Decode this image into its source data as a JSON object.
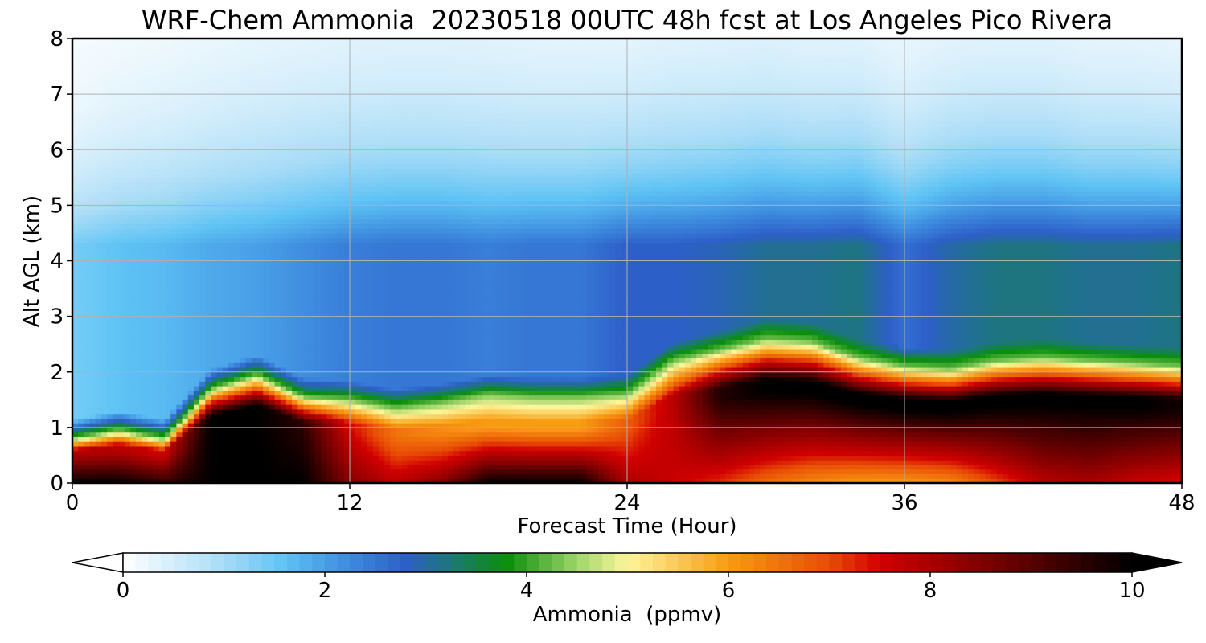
{
  "chart_data": {
    "type": "heatmap",
    "title": "WRF-Chem Ammonia  20230518 00UTC 48h fcst at Los Angeles Pico Rivera",
    "xlabel": "Forecast Time (Hour)",
    "ylabel": "Alt AGL (km)",
    "xlim": [
      0,
      48
    ],
    "ylim": [
      0,
      8
    ],
    "xticks": [
      0,
      12,
      24,
      36,
      48
    ],
    "yticks": [
      0,
      1,
      2,
      3,
      4,
      5,
      6,
      7,
      8
    ],
    "grid": true,
    "colorbar": {
      "label": "Ammonia  (ppmv)",
      "orientation": "horizontal",
      "placement": "bottom",
      "range": [
        0,
        10
      ],
      "extend": "both",
      "ticks": [
        0,
        2,
        4,
        6,
        8,
        10
      ],
      "colors": [
        {
          "v": 0,
          "c": "#ffffff"
        },
        {
          "v": 1.0,
          "c": "#a8dcf7"
        },
        {
          "v": 1.6,
          "c": "#5ec3f5"
        },
        {
          "v": 2.2,
          "c": "#3f8ee0"
        },
        {
          "v": 2.8,
          "c": "#2d5fc9"
        },
        {
          "v": 3.3,
          "c": "#1a7a6e"
        },
        {
          "v": 3.8,
          "c": "#0a8f0a"
        },
        {
          "v": 4.5,
          "c": "#9ed56a"
        },
        {
          "v": 5.0,
          "c": "#fdf69a"
        },
        {
          "v": 6.0,
          "c": "#f99b12"
        },
        {
          "v": 7.0,
          "c": "#e84c05"
        },
        {
          "v": 7.5,
          "c": "#d10000"
        },
        {
          "v": 8.6,
          "c": "#7a0000"
        },
        {
          "v": 10.0,
          "c": "#000000"
        }
      ]
    },
    "hours": [
      0,
      2,
      4,
      6,
      8,
      10,
      12,
      14,
      16,
      18,
      20,
      22,
      24,
      26,
      28,
      30,
      32,
      34,
      36,
      38,
      40,
      42,
      44,
      46,
      48
    ],
    "altitudes_km": [
      0,
      0.2,
      0.4,
      0.6,
      0.8,
      1.0,
      1.2,
      1.4,
      1.6,
      1.8,
      2.0,
      2.2,
      2.4,
      2.6,
      2.8,
      3.0,
      3.2,
      3.4,
      3.6,
      3.8,
      4.0,
      4.2,
      4.4,
      4.6,
      4.8,
      5.0,
      5.2,
      5.4,
      5.6,
      5.8,
      6.0,
      6.2,
      6.4,
      6.6,
      6.8,
      7.0,
      7.2,
      7.4,
      7.6,
      7.8,
      8.0
    ],
    "profile": {
      "hours": [
        0,
        2,
        4,
        6,
        8,
        10,
        12,
        14,
        16,
        18,
        20,
        22,
        24,
        26,
        28,
        30,
        32,
        34,
        36,
        38,
        40,
        42,
        44,
        46,
        48
      ],
      "boundary_layer_top_km": [
        0.8,
        0.95,
        0.8,
        1.7,
        1.95,
        1.55,
        1.5,
        1.35,
        1.45,
        1.6,
        1.55,
        1.55,
        1.6,
        2.2,
        2.4,
        2.6,
        2.55,
        2.25,
        2.1,
        2.05,
        2.2,
        2.25,
        2.2,
        2.15,
        2.1
      ],
      "near_surface_ppmv": [
        10,
        10,
        9.5,
        10,
        10,
        10,
        8.5,
        7.8,
        8.5,
        10,
        10,
        10,
        8,
        7.6,
        7.2,
        6.6,
        6.2,
        6.0,
        6.0,
        6.2,
        7.0,
        7.8,
        8.0,
        7.6,
        7.4
      ],
      "boundary_layer_core_ppmv": [
        8.0,
        7.8,
        7.6,
        10,
        10,
        9.5,
        7.5,
        6.5,
        6.2,
        6.0,
        6.0,
        6.0,
        6.8,
        7.8,
        9.6,
        10,
        10,
        10,
        10,
        10,
        10,
        10,
        10,
        10,
        9.8
      ],
      "free_troposphere_ppmv": [
        1.4,
        1.6,
        1.7,
        1.9,
        2.0,
        2.2,
        2.4,
        2.5,
        2.5,
        2.4,
        2.5,
        2.5,
        2.8,
        2.8,
        2.9,
        3.1,
        3.1,
        3.2,
        2.6,
        3.0,
        3.2,
        3.2,
        3.1,
        3.1,
        3.2
      ],
      "upper_level_decay_km": [
        1.4,
        1.6,
        1.7,
        1.8,
        1.9,
        1.9,
        1.9,
        1.9,
        1.9,
        1.9,
        1.8,
        1.8,
        1.7,
        1.8,
        1.8,
        1.8,
        1.7,
        1.7,
        1.6,
        1.7,
        1.7,
        1.7,
        1.6,
        1.6,
        1.5
      ]
    }
  }
}
